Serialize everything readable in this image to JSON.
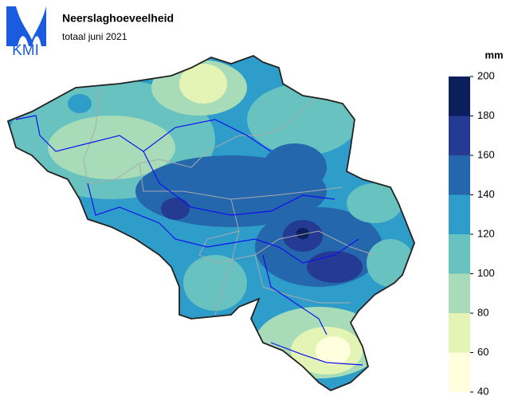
{
  "logo": {
    "text": "KMI"
  },
  "header": {
    "title": "Neerslaghoeveelheid",
    "subtitle": "totaal juni 2021"
  },
  "legend": {
    "unit": "mm",
    "ticks": [
      40,
      60,
      80,
      100,
      120,
      140,
      160,
      180,
      200
    ],
    "colors": [
      "#ffffdd",
      "#e3f4b4",
      "#a8dcb9",
      "#67c2c0",
      "#2f9dc9",
      "#2467ad",
      "#253a93",
      "#0b1f5b"
    ]
  }
}
